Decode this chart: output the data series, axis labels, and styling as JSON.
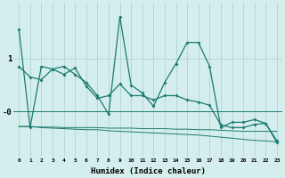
{
  "xlabel": "Humidex (Indice chaleur)",
  "bg_color": "#d4eeed",
  "grid_color": "#aed4d0",
  "line_color": "#1c7a70",
  "x_ticks": [
    0,
    1,
    2,
    3,
    4,
    5,
    6,
    7,
    8,
    9,
    10,
    11,
    12,
    13,
    14,
    15,
    16,
    17,
    18,
    19,
    20,
    21,
    22,
    23
  ],
  "series1": [
    1.55,
    -0.3,
    0.85,
    0.8,
    0.85,
    0.7,
    0.55,
    0.3,
    -0.05,
    1.78,
    0.5,
    0.35,
    0.1,
    0.55,
    0.9,
    1.3,
    1.3,
    0.85,
    -0.3,
    -0.2,
    -0.2,
    -0.15,
    -0.22,
    -0.55
  ],
  "series2": [
    0.85,
    0.65,
    0.6,
    0.8,
    0.7,
    0.82,
    0.48,
    0.25,
    0.3,
    0.52,
    0.3,
    0.3,
    0.22,
    0.3,
    0.3,
    0.22,
    0.18,
    0.12,
    -0.25,
    -0.3,
    -0.3,
    -0.24,
    -0.22,
    -0.58
  ],
  "series3_flat": [
    -0.28,
    -0.28,
    -0.3,
    -0.31,
    -0.32,
    -0.33,
    -0.34,
    -0.34,
    -0.36,
    -0.37,
    -0.38,
    -0.39,
    -0.4,
    -0.41,
    -0.42,
    -0.43,
    -0.44,
    -0.46,
    -0.48,
    -0.5,
    -0.52,
    -0.54,
    -0.55,
    -0.57
  ],
  "series4_flat": [
    -0.28,
    -0.28,
    -0.29,
    -0.29,
    -0.3,
    -0.3,
    -0.3,
    -0.3,
    -0.31,
    -0.31,
    -0.31,
    -0.32,
    -0.32,
    -0.32,
    -0.33,
    -0.33,
    -0.34,
    -0.34,
    -0.35,
    -0.36,
    -0.37,
    -0.37,
    -0.37,
    -0.37
  ],
  "ylim": [
    -0.85,
    2.05
  ],
  "yticks": [
    1.0,
    0.0
  ],
  "ytick_str": [
    "1",
    "-0"
  ]
}
